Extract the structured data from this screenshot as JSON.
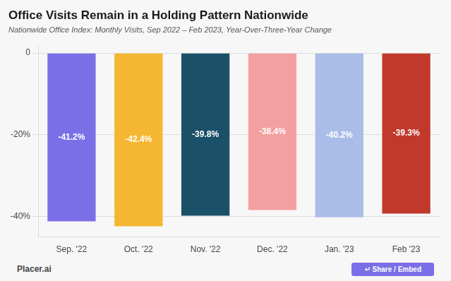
{
  "chart_data": {
    "type": "bar",
    "title": "Office Visits Remain in a Holding Pattern Nationwide",
    "subtitle": "Nationwide Office Index: Monthly Visits, Sep 2022 – Feb 2023, Year-Over-Three-Year Change",
    "categories": [
      "Sep. '22",
      "Oct. '22",
      "Nov. '22",
      "Dec. '22",
      "Jan. '23",
      "Feb '23"
    ],
    "values": [
      -41.2,
      -42.4,
      -39.8,
      -38.4,
      -40.2,
      -39.3
    ],
    "value_labels": [
      "-41.2%",
      "-42.4%",
      "-39.8%",
      "-38.4%",
      "-40.2%",
      "-39.3%"
    ],
    "data_labels": true,
    "colors": [
      "#7B6FE8",
      "#F5B731",
      "#1A5068",
      "#F4A0A0",
      "#AABDE8",
      "#C0392B"
    ],
    "ylim": [
      -45,
      2
    ],
    "yticks": [
      0,
      {
        "value": -20,
        "label": "-20%"
      },
      {
        "value": -40,
        "label": "-40%"
      }
    ],
    "grid": true,
    "annotations": [
      "Placer.ai",
      "↵ Share / Embed"
    ]
  }
}
